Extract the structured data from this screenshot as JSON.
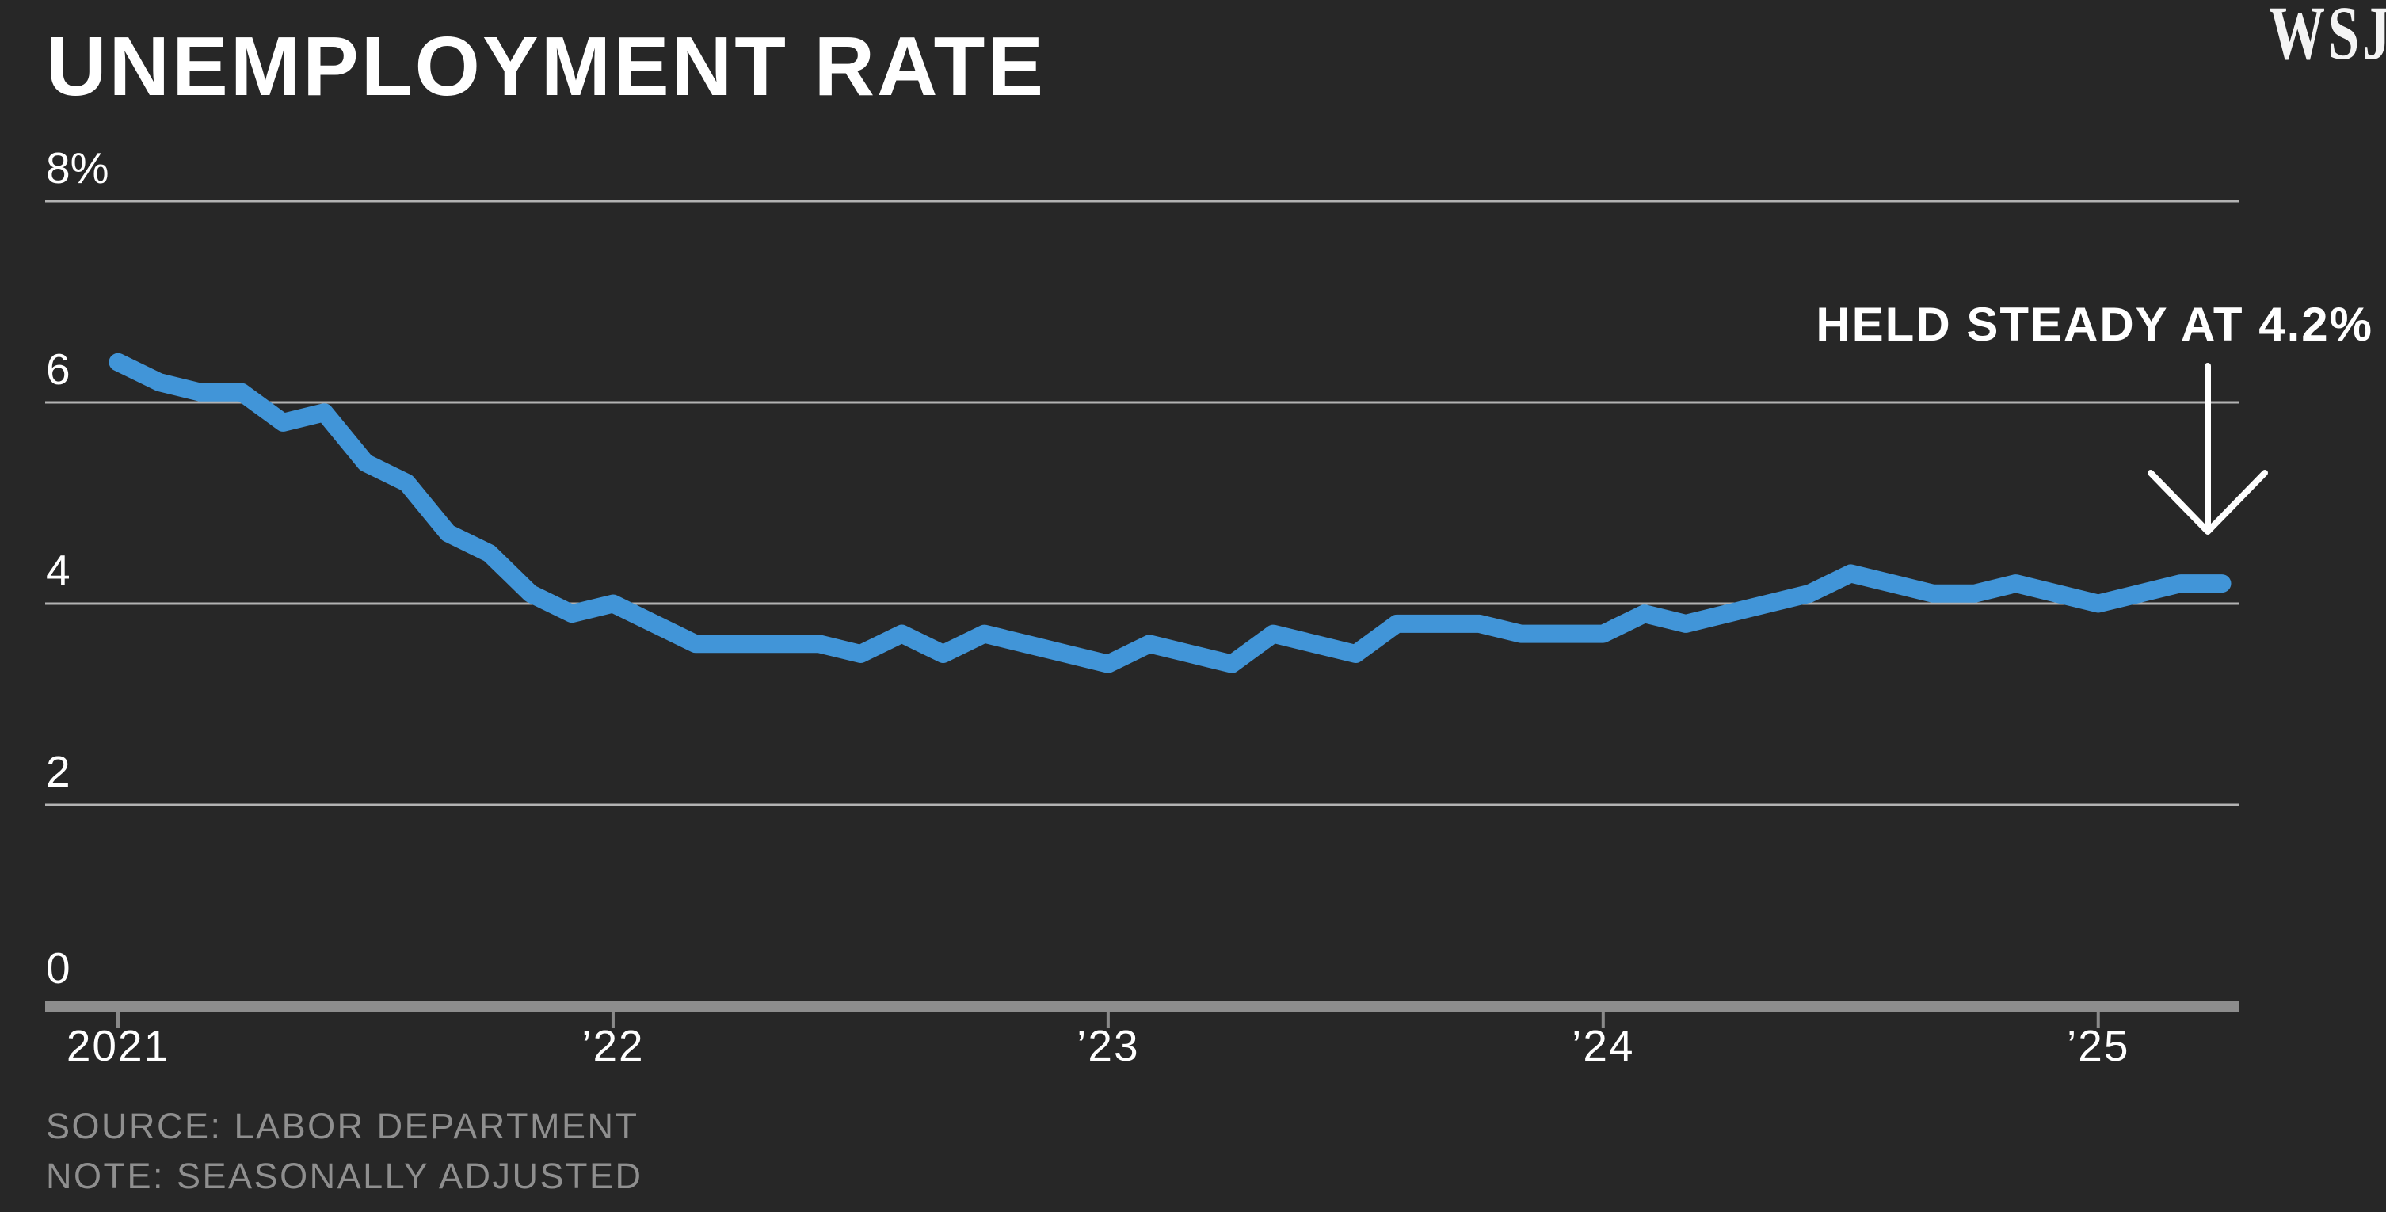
{
  "title": "UNEMPLOYMENT RATE",
  "brand": "WSJ",
  "annotation": {
    "text": "HELD STEADY AT 4.2%"
  },
  "source_line": "SOURCE: LABOR DEPARTMENT",
  "note_line": "NOTE: SEASONALLY ADJUSTED",
  "colors": {
    "background": "#272727",
    "line": "#4195d8",
    "gridline": "#b3b3b3",
    "axis_bar": "#8d8d8d",
    "tick": "#8a8a8a",
    "text": "#ffffff",
    "muted_text": "#8f8f8f"
  },
  "chart_data": {
    "type": "line",
    "title": "UNEMPLOYMENT RATE",
    "unit": "percent",
    "ylim": [
      0,
      8
    ],
    "grid": true,
    "annotation": "HELD STEADY AT 4.2%",
    "last_value": 4.2,
    "y_ticks": [
      {
        "label": "8%",
        "value": 8
      },
      {
        "label": "6",
        "value": 6
      },
      {
        "label": "4",
        "value": 4
      },
      {
        "label": "2",
        "value": 2
      },
      {
        "label": "0",
        "value": 0
      }
    ],
    "x_ticks": [
      "2021",
      "’22",
      "’23",
      "’24",
      "’25"
    ],
    "x": [
      "2021-01",
      "2021-02",
      "2021-03",
      "2021-04",
      "2021-05",
      "2021-06",
      "2021-07",
      "2021-08",
      "2021-09",
      "2021-10",
      "2021-11",
      "2021-12",
      "2022-01",
      "2022-02",
      "2022-03",
      "2022-04",
      "2022-05",
      "2022-06",
      "2022-07",
      "2022-08",
      "2022-09",
      "2022-10",
      "2022-11",
      "2022-12",
      "2023-01",
      "2023-02",
      "2023-03",
      "2023-04",
      "2023-05",
      "2023-06",
      "2023-07",
      "2023-08",
      "2023-09",
      "2023-10",
      "2023-11",
      "2023-12",
      "2024-01",
      "2024-02",
      "2024-03",
      "2024-04",
      "2024-05",
      "2024-06",
      "2024-07",
      "2024-08",
      "2024-09",
      "2024-10",
      "2024-11",
      "2024-12",
      "2025-01",
      "2025-02",
      "2025-03",
      "2025-04"
    ],
    "values": [
      6.4,
      6.2,
      6.1,
      6.1,
      5.8,
      5.9,
      5.4,
      5.2,
      4.7,
      4.5,
      4.1,
      3.9,
      4.0,
      3.8,
      3.6,
      3.6,
      3.6,
      3.6,
      3.5,
      3.7,
      3.5,
      3.7,
      3.6,
      3.5,
      3.4,
      3.6,
      3.5,
      3.4,
      3.7,
      3.6,
      3.5,
      3.8,
      3.8,
      3.8,
      3.7,
      3.7,
      3.7,
      3.9,
      3.8,
      3.9,
      4.0,
      4.1,
      4.3,
      4.2,
      4.1,
      4.1,
      4.2,
      4.1,
      4.0,
      4.1,
      4.2,
      4.2
    ]
  }
}
